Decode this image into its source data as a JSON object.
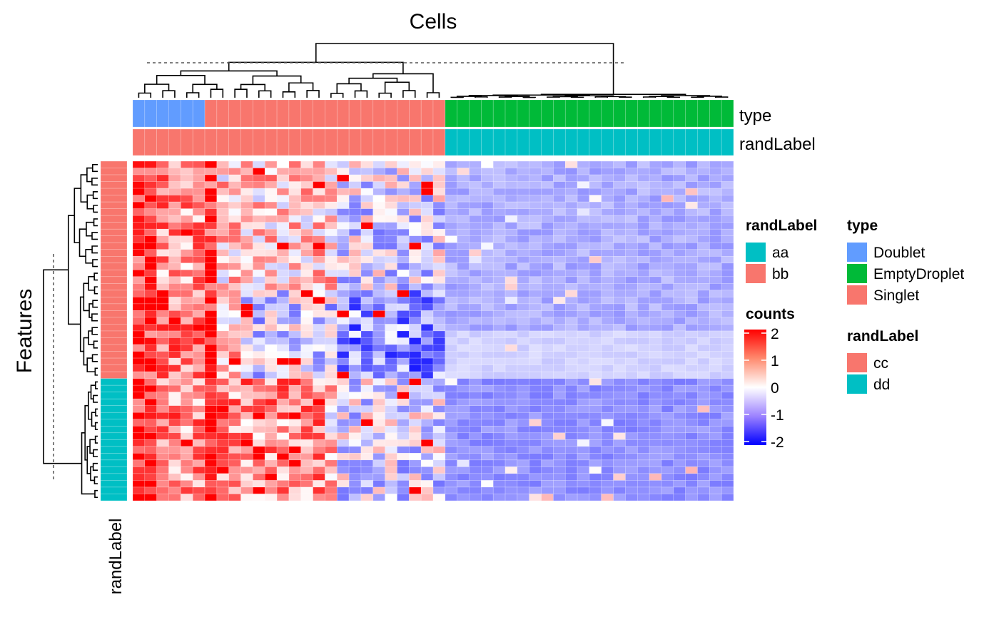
{
  "chart_data": {
    "type": "heatmap",
    "title": "Cells",
    "row_title": "Features",
    "row_annotation_label": "randLabel",
    "column_annotations": [
      {
        "name": "type",
        "label": "type"
      },
      {
        "name": "randLabel",
        "label": "randLabel"
      }
    ],
    "n_columns": 50,
    "n_rows": 50,
    "column_groups": {
      "type": [
        {
          "level": "Doublet",
          "count": 6
        },
        {
          "level": "Singlet",
          "count": 20
        },
        {
          "level": "EmptyDroplet",
          "count": 24
        }
      ],
      "randLabel": [
        {
          "level": "bb",
          "count": 26
        },
        {
          "level": "aa",
          "count": 24
        }
      ]
    },
    "row_groups": {
      "randLabel": [
        {
          "level": "cc",
          "count": 32
        },
        {
          "level": "dd",
          "count": 18
        }
      ]
    },
    "color_scale": {
      "name": "counts",
      "min": -2,
      "max": 2,
      "ticks": [
        2,
        1,
        0,
        -1,
        -2
      ],
      "low_color": "#0000FF",
      "mid_color": "#FFFFFF",
      "high_color": "#FF0000"
    },
    "value_pattern": {
      "doublet_and_singlet_columns": "mostly positive (0 to 2), strongest in first columns",
      "emptydroplet_columns": "mostly negative (about -0.5 to -1)"
    },
    "legends": [
      {
        "title": "randLabel",
        "items": [
          {
            "label": "aa",
            "color": "#00BFC4"
          },
          {
            "label": "bb",
            "color": "#F8766D"
          }
        ]
      },
      {
        "title": "type",
        "items": [
          {
            "label": "Doublet",
            "color": "#619CFF"
          },
          {
            "label": "EmptyDroplet",
            "color": "#00BA38"
          },
          {
            "label": "Singlet",
            "color": "#F8766D"
          }
        ]
      },
      {
        "title": "counts",
        "ticks": [
          "2",
          "1",
          "0",
          "-1",
          "-2"
        ]
      },
      {
        "title": "randLabel",
        "items": [
          {
            "label": "cc",
            "color": "#F8766D"
          },
          {
            "label": "dd",
            "color": "#00BFC4"
          }
        ]
      }
    ]
  }
}
